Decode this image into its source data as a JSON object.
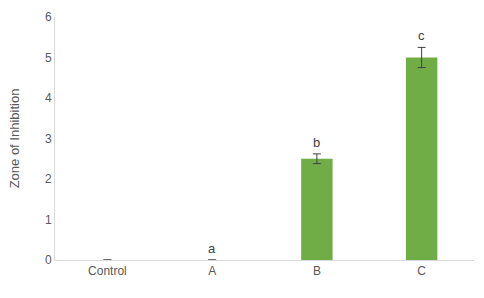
{
  "chart_data": {
    "type": "bar",
    "y_label": "Zone of Inhibition",
    "categories": [
      "Control",
      "A",
      "B",
      "C"
    ],
    "values": [
      0,
      0,
      2.5,
      5
    ],
    "errors": [
      null,
      null,
      0.12,
      0.25
    ],
    "color": "#70ad47",
    "ylim": [
      0,
      6
    ],
    "yticks": [
      0,
      1,
      2,
      3,
      4,
      5,
      6
    ],
    "grid": false,
    "annotations": [
      {
        "category": "A",
        "text": "a"
      },
      {
        "category": "B",
        "text": "b"
      },
      {
        "category": "C",
        "text": "c"
      }
    ]
  }
}
